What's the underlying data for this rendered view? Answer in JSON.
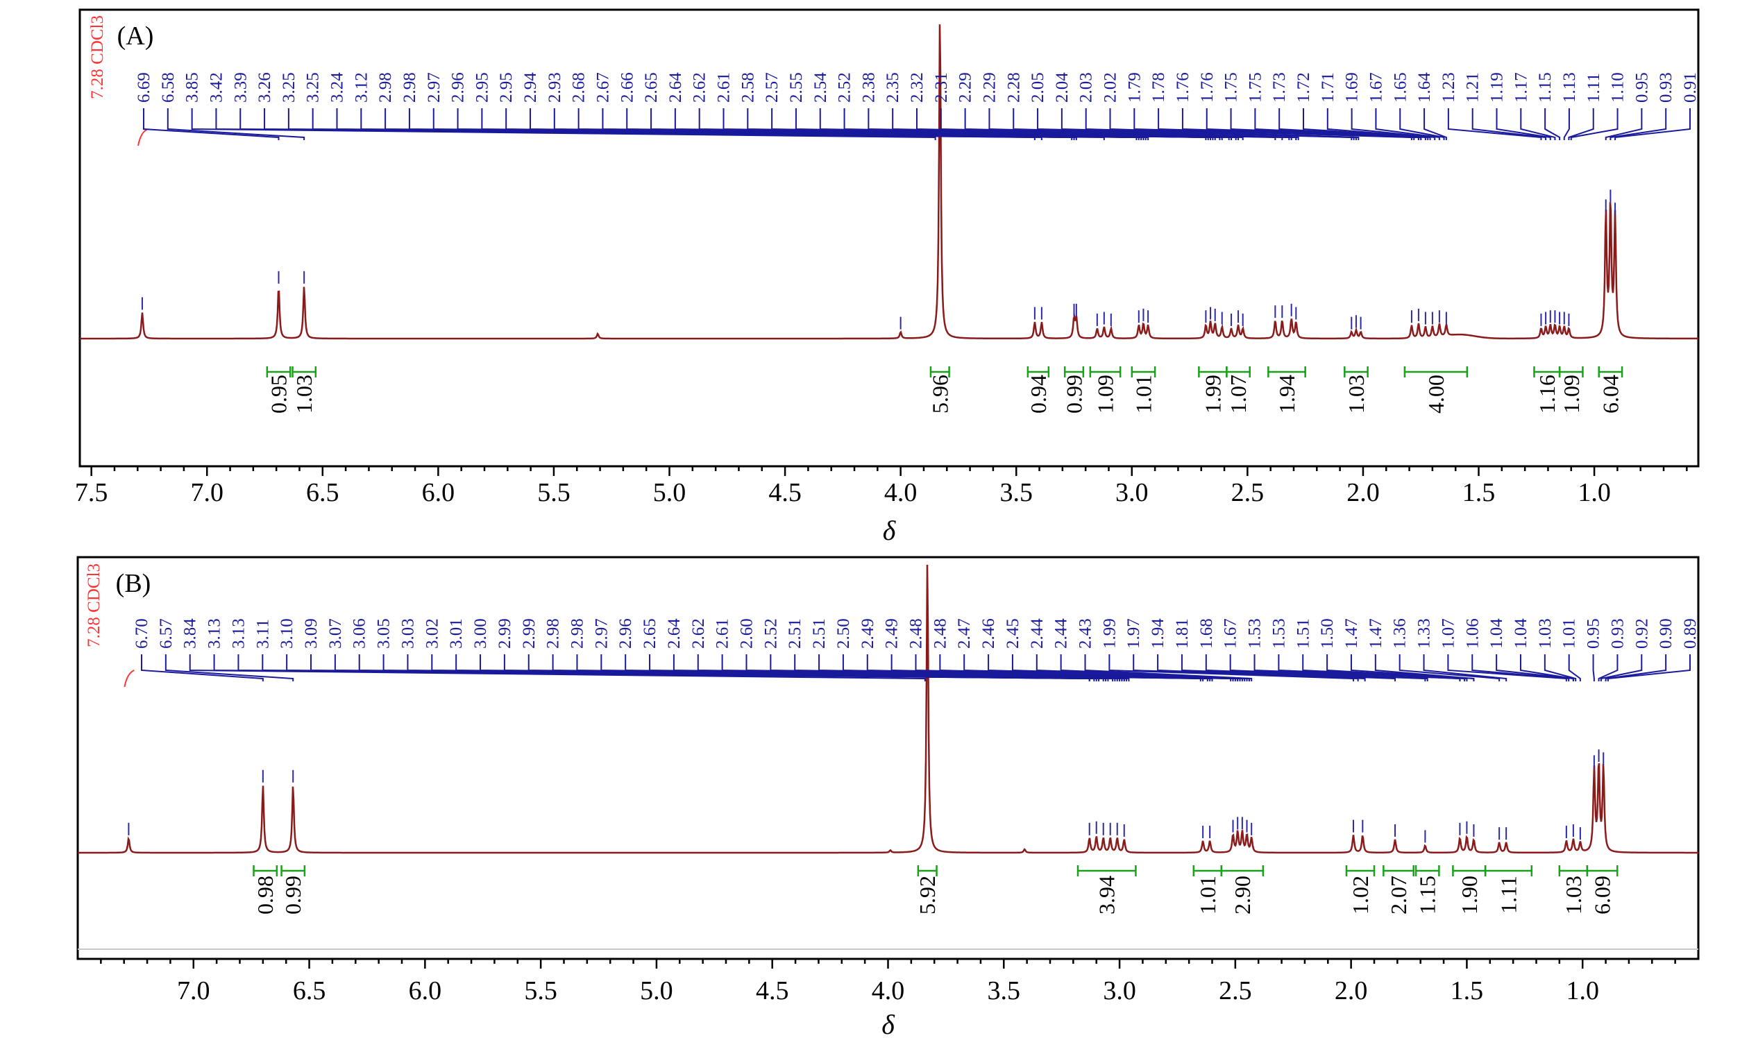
{
  "chart_data": [
    {
      "type": "line",
      "panel_label": "(A)",
      "xlabel": "δ",
      "xlim": [
        7.55,
        0.55
      ],
      "x_reversed": true,
      "x_ticks": [
        "7.5",
        "7.0",
        "6.5",
        "6.0",
        "5.5",
        "5.0",
        "4.5",
        "4.0",
        "3.5",
        "3.0",
        "2.5",
        "2.0",
        "1.5",
        "1.0"
      ],
      "solvent_label": "7.28 CDCl3",
      "solvent_shift": 7.28,
      "peak_labels": [
        "6.69",
        "6.58",
        "3.85",
        "3.42",
        "3.39",
        "3.26",
        "3.25",
        "3.25",
        "3.24",
        "3.12",
        "2.98",
        "2.98",
        "2.97",
        "2.96",
        "2.95",
        "2.95",
        "2.94",
        "2.93",
        "2.68",
        "2.67",
        "2.66",
        "2.65",
        "2.64",
        "2.62",
        "2.61",
        "2.58",
        "2.57",
        "2.55",
        "2.54",
        "2.52",
        "2.38",
        "2.35",
        "2.32",
        "2.31",
        "2.29",
        "2.29",
        "2.28",
        "2.05",
        "2.04",
        "2.03",
        "2.02",
        "1.79",
        "1.78",
        "1.76",
        "1.76",
        "1.75",
        "1.75",
        "1.73",
        "1.72",
        "1.71",
        "1.69",
        "1.67",
        "1.65",
        "1.64",
        "1.23",
        "1.21",
        "1.19",
        "1.17",
        "1.15",
        "1.13",
        "1.11",
        "1.10",
        "0.95",
        "0.93",
        "0.91"
      ],
      "peaks": [
        {
          "x": 7.28,
          "h": 0.08
        },
        {
          "x": 6.69,
          "h": 0.16
        },
        {
          "x": 6.58,
          "h": 0.16
        },
        {
          "x": 5.31,
          "h": 0.015
        },
        {
          "x": 4.0,
          "h": 0.02
        },
        {
          "x": 3.83,
          "h": 1.0
        },
        {
          "x": 3.42,
          "h": 0.05
        },
        {
          "x": 3.39,
          "h": 0.05
        },
        {
          "x": 3.25,
          "h": 0.06
        },
        {
          "x": 3.24,
          "h": 0.06
        },
        {
          "x": 3.15,
          "h": 0.03
        },
        {
          "x": 3.12,
          "h": 0.035
        },
        {
          "x": 3.09,
          "h": 0.03
        },
        {
          "x": 2.97,
          "h": 0.04
        },
        {
          "x": 2.95,
          "h": 0.045
        },
        {
          "x": 2.93,
          "h": 0.04
        },
        {
          "x": 2.68,
          "h": 0.04
        },
        {
          "x": 2.66,
          "h": 0.05
        },
        {
          "x": 2.64,
          "h": 0.045
        },
        {
          "x": 2.61,
          "h": 0.035
        },
        {
          "x": 2.57,
          "h": 0.03
        },
        {
          "x": 2.54,
          "h": 0.04
        },
        {
          "x": 2.52,
          "h": 0.03
        },
        {
          "x": 2.38,
          "h": 0.055
        },
        {
          "x": 2.35,
          "h": 0.055
        },
        {
          "x": 2.31,
          "h": 0.06
        },
        {
          "x": 2.29,
          "h": 0.05
        },
        {
          "x": 2.05,
          "h": 0.02
        },
        {
          "x": 2.03,
          "h": 0.025
        },
        {
          "x": 2.01,
          "h": 0.02
        },
        {
          "x": 1.79,
          "h": 0.04
        },
        {
          "x": 1.76,
          "h": 0.045
        },
        {
          "x": 1.73,
          "h": 0.035
        },
        {
          "x": 1.7,
          "h": 0.035
        },
        {
          "x": 1.67,
          "h": 0.04
        },
        {
          "x": 1.64,
          "h": 0.035
        },
        {
          "x": 1.23,
          "h": 0.03
        },
        {
          "x": 1.21,
          "h": 0.035
        },
        {
          "x": 1.19,
          "h": 0.04
        },
        {
          "x": 1.17,
          "h": 0.04
        },
        {
          "x": 1.15,
          "h": 0.035
        },
        {
          "x": 1.13,
          "h": 0.035
        },
        {
          "x": 1.11,
          "h": 0.03
        },
        {
          "x": 0.95,
          "h": 0.38
        },
        {
          "x": 0.93,
          "h": 0.41
        },
        {
          "x": 0.91,
          "h": 0.37
        }
      ],
      "integrals": [
        {
          "value": "0.95",
          "from": 6.74,
          "to": 6.64
        },
        {
          "value": "1.03",
          "from": 6.63,
          "to": 6.53
        },
        {
          "value": "5.96",
          "from": 3.87,
          "to": 3.79
        },
        {
          "value": "0.94",
          "from": 3.45,
          "to": 3.36
        },
        {
          "value": "0.99",
          "from": 3.29,
          "to": 3.21
        },
        {
          "value": "1.09",
          "from": 3.18,
          "to": 3.05
        },
        {
          "value": "1.01",
          "from": 3.0,
          "to": 2.9
        },
        {
          "value": "1.99",
          "from": 2.71,
          "to": 2.59
        },
        {
          "value": "1.07",
          "from": 2.59,
          "to": 2.49
        },
        {
          "value": "1.94",
          "from": 2.41,
          "to": 2.25
        },
        {
          "value": "1.03",
          "from": 2.08,
          "to": 1.98
        },
        {
          "value": "4.00",
          "from": 1.82,
          "to": 1.55
        },
        {
          "value": "1.16",
          "from": 1.26,
          "to": 1.15
        },
        {
          "value": "1.09",
          "from": 1.15,
          "to": 1.05
        },
        {
          "value": "6.04",
          "from": 0.98,
          "to": 0.88
        }
      ]
    },
    {
      "type": "line",
      "panel_label": "(B)",
      "xlabel": "δ",
      "xlim": [
        7.5,
        0.5
      ],
      "x_reversed": true,
      "x_ticks": [
        "7.0",
        "6.5",
        "6.0",
        "5.5",
        "5.0",
        "4.5",
        "4.0",
        "3.5",
        "3.0",
        "2.5",
        "2.0",
        "1.5",
        "1.0"
      ],
      "solvent_label": "7.28 CDCl3",
      "solvent_shift": 7.28,
      "peak_labels": [
        "6.70",
        "6.57",
        "3.84",
        "3.13",
        "3.13",
        "3.11",
        "3.10",
        "3.09",
        "3.07",
        "3.06",
        "3.05",
        "3.03",
        "3.02",
        "3.01",
        "3.00",
        "2.99",
        "2.99",
        "2.98",
        "2.98",
        "2.97",
        "2.96",
        "2.65",
        "2.64",
        "2.62",
        "2.61",
        "2.60",
        "2.52",
        "2.51",
        "2.51",
        "2.50",
        "2.49",
        "2.49",
        "2.48",
        "2.48",
        "2.47",
        "2.46",
        "2.45",
        "2.44",
        "2.44",
        "2.43",
        "1.99",
        "1.97",
        "1.94",
        "1.81",
        "1.68",
        "1.67",
        "1.53",
        "1.53",
        "1.51",
        "1.50",
        "1.47",
        "1.47",
        "1.36",
        "1.33",
        "1.07",
        "1.06",
        "1.04",
        "1.04",
        "1.03",
        "1.01",
        "0.95",
        "0.93",
        "0.92",
        "0.90",
        "0.89"
      ],
      "peaks": [
        {
          "x": 7.28,
          "h": 0.05
        },
        {
          "x": 6.7,
          "h": 0.23
        },
        {
          "x": 6.57,
          "h": 0.23
        },
        {
          "x": 3.99,
          "h": 0.008
        },
        {
          "x": 3.41,
          "h": 0.012
        },
        {
          "x": 3.83,
          "h": 1.0
        },
        {
          "x": 3.13,
          "h": 0.05
        },
        {
          "x": 3.1,
          "h": 0.055
        },
        {
          "x": 3.07,
          "h": 0.05
        },
        {
          "x": 3.04,
          "h": 0.05
        },
        {
          "x": 3.01,
          "h": 0.05
        },
        {
          "x": 2.98,
          "h": 0.045
        },
        {
          "x": 2.64,
          "h": 0.04
        },
        {
          "x": 2.61,
          "h": 0.04
        },
        {
          "x": 2.51,
          "h": 0.06
        },
        {
          "x": 2.49,
          "h": 0.07
        },
        {
          "x": 2.47,
          "h": 0.07
        },
        {
          "x": 2.45,
          "h": 0.06
        },
        {
          "x": 2.43,
          "h": 0.05
        },
        {
          "x": 1.99,
          "h": 0.06
        },
        {
          "x": 1.95,
          "h": 0.06
        },
        {
          "x": 1.81,
          "h": 0.045
        },
        {
          "x": 1.68,
          "h": 0.025
        },
        {
          "x": 1.53,
          "h": 0.05
        },
        {
          "x": 1.5,
          "h": 0.055
        },
        {
          "x": 1.47,
          "h": 0.045
        },
        {
          "x": 1.36,
          "h": 0.035
        },
        {
          "x": 1.33,
          "h": 0.035
        },
        {
          "x": 1.07,
          "h": 0.04
        },
        {
          "x": 1.04,
          "h": 0.045
        },
        {
          "x": 1.01,
          "h": 0.035
        },
        {
          "x": 0.95,
          "h": 0.28
        },
        {
          "x": 0.93,
          "h": 0.3
        },
        {
          "x": 0.91,
          "h": 0.29
        }
      ],
      "integrals": [
        {
          "value": "0.98",
          "from": 6.74,
          "to": 6.64
        },
        {
          "value": "0.99",
          "from": 6.62,
          "to": 6.52
        },
        {
          "value": "5.92",
          "from": 3.87,
          "to": 3.79
        },
        {
          "value": "3.94",
          "from": 3.18,
          "to": 2.93
        },
        {
          "value": "1.01",
          "from": 2.68,
          "to": 2.56
        },
        {
          "value": "2.90",
          "from": 2.56,
          "to": 2.38
        },
        {
          "value": "1.02",
          "from": 2.02,
          "to": 1.9
        },
        {
          "value": "2.07",
          "from": 1.86,
          "to": 1.73
        },
        {
          "value": "1.15",
          "from": 1.72,
          "to": 1.62
        },
        {
          "value": "1.90",
          "from": 1.56,
          "to": 1.42
        },
        {
          "value": "1.11",
          "from": 1.42,
          "to": 1.22
        },
        {
          "value": "1.03",
          "from": 1.1,
          "to": 0.98
        },
        {
          "value": "6.09",
          "from": 0.98,
          "to": 0.85
        }
      ]
    }
  ]
}
